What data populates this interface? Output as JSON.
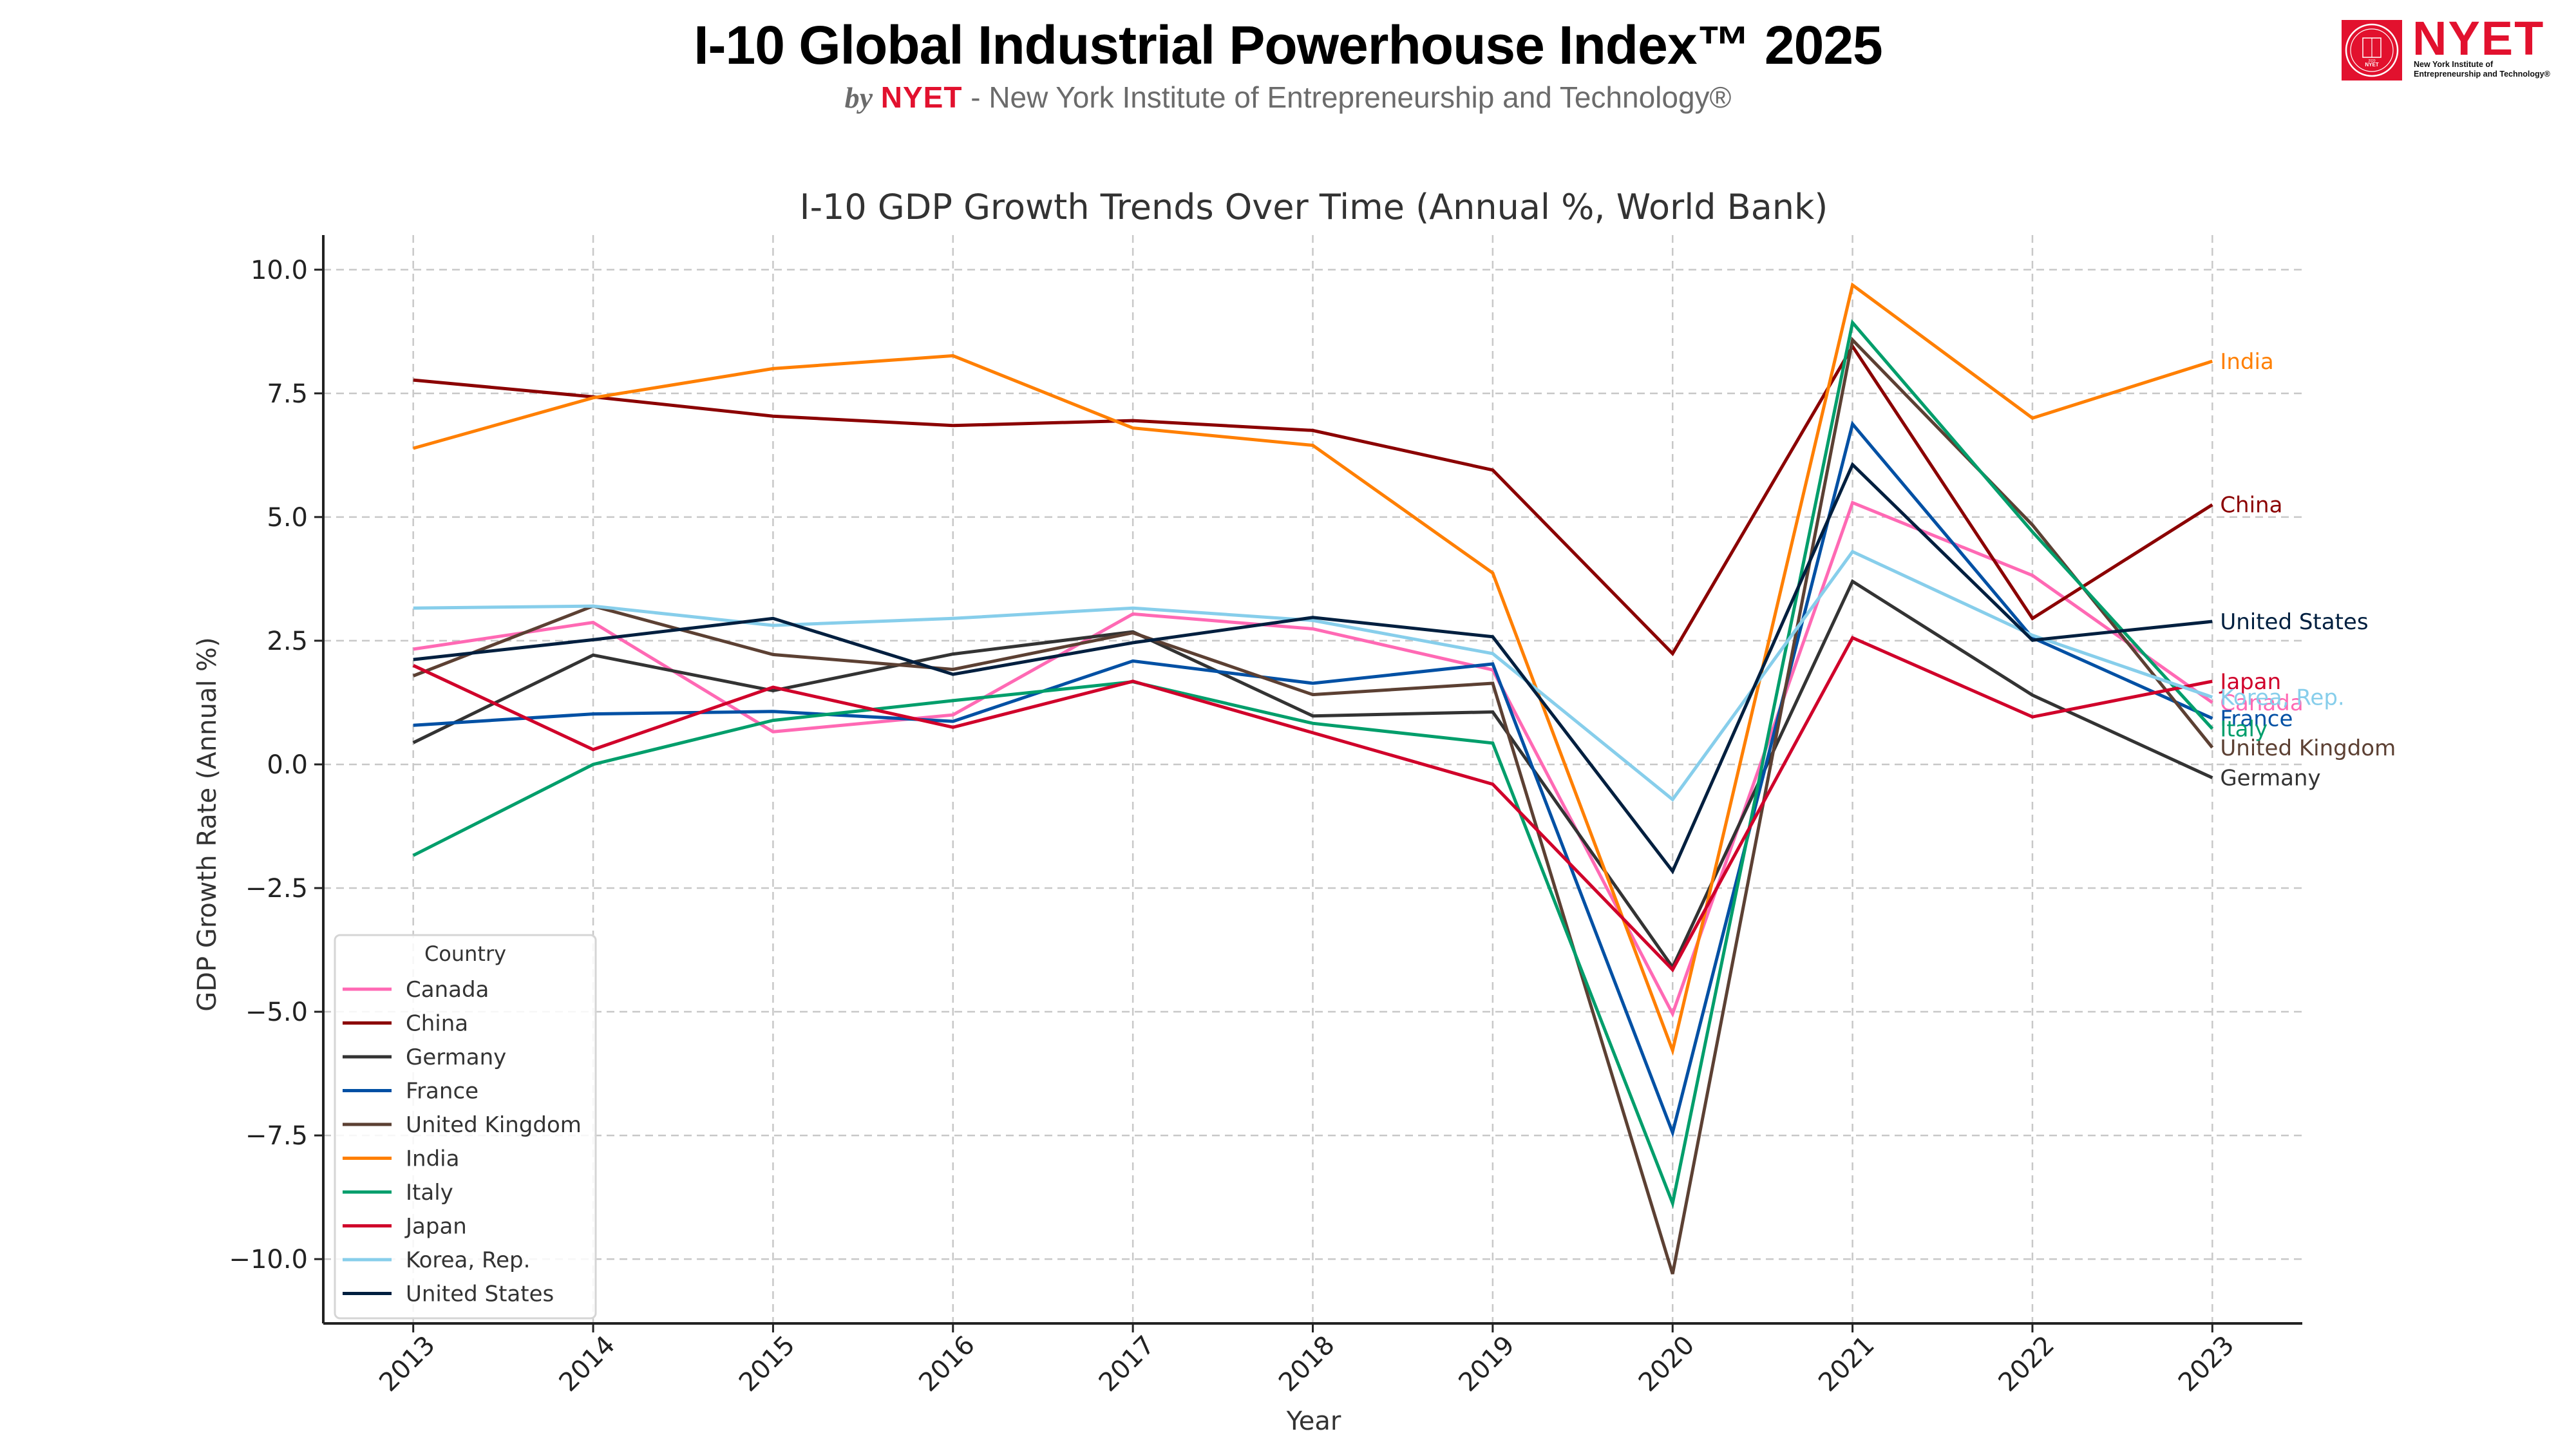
{
  "header": {
    "title": "I-10 Global Industrial Powerhouse Index™ 2025",
    "subtitle_by": "by",
    "subtitle_brand": "NYET",
    "subtitle_rest": " - New York Institute of Entrepreneurship and Technology®"
  },
  "logo": {
    "wordmark": "NYET",
    "tagline_line1": "New York Institute of",
    "tagline_line2": "Entrepreneurship and Technology®",
    "seal_text": "NYET",
    "seal_year": "2020",
    "brand_color": "#e2112e"
  },
  "chart_data": {
    "type": "line",
    "title": "I-10 GDP Growth Trends Over Time (Annual %, World Bank)",
    "xlabel": "Year",
    "ylabel": "GDP Growth Rate (Annual %)",
    "x": [
      2013,
      2014,
      2015,
      2016,
      2017,
      2018,
      2019,
      2020,
      2021,
      2022,
      2023
    ],
    "x_tick_labels": [
      "2013",
      "2014",
      "2015",
      "2016",
      "2017",
      "2018",
      "2019",
      "2020",
      "2021",
      "2022",
      "2023"
    ],
    "ylim": [
      -11.3,
      10.7
    ],
    "y_ticks": [
      10.0,
      7.5,
      5.0,
      2.5,
      0.0,
      -2.5,
      -5.0,
      -7.5,
      -10.0
    ],
    "y_tick_labels": [
      "10.0",
      "7.5",
      "5.0",
      "2.5",
      "0.0",
      "−2.5",
      "−5.0",
      "−7.5",
      "−10.0"
    ],
    "grid": true,
    "legend": {
      "title": "Country",
      "placement": "lower-left"
    },
    "end_labels": true,
    "series": [
      {
        "name": "Canada",
        "color": "#ff69b4",
        "values": [
          2.33,
          2.87,
          0.66,
          1.0,
          3.04,
          2.74,
          1.91,
          -5.04,
          5.29,
          3.82,
          1.25
        ]
      },
      {
        "name": "China",
        "color": "#8b0000",
        "values": [
          7.77,
          7.43,
          7.04,
          6.85,
          6.95,
          6.75,
          5.95,
          2.24,
          8.45,
          2.95,
          5.25
        ]
      },
      {
        "name": "Germany",
        "color": "#333333",
        "values": [
          0.44,
          2.21,
          1.49,
          2.23,
          2.68,
          0.98,
          1.06,
          -4.1,
          3.7,
          1.4,
          -0.27
        ]
      },
      {
        "name": "France",
        "color": "#0050a4",
        "values": [
          0.79,
          1.02,
          1.07,
          0.87,
          2.09,
          1.64,
          2.03,
          -7.44,
          6.88,
          2.56,
          0.93
        ]
      },
      {
        "name": "United Kingdom",
        "color": "#5c4033",
        "values": [
          1.79,
          3.2,
          2.22,
          1.92,
          2.66,
          1.41,
          1.64,
          -10.3,
          8.58,
          4.84,
          0.34
        ]
      },
      {
        "name": "India",
        "color": "#ff7f00",
        "values": [
          6.39,
          7.41,
          8.0,
          8.26,
          6.8,
          6.45,
          3.87,
          -5.78,
          9.69,
          7.0,
          8.15
        ]
      },
      {
        "name": "Italy",
        "color": "#009e6b",
        "values": [
          -1.84,
          0.0,
          0.89,
          1.29,
          1.67,
          0.83,
          0.43,
          -8.87,
          8.93,
          4.7,
          0.72
        ]
      },
      {
        "name": "Japan",
        "color": "#d0002a",
        "values": [
          2.0,
          0.3,
          1.56,
          0.75,
          1.68,
          0.64,
          -0.4,
          -4.15,
          2.56,
          0.96,
          1.68
        ]
      },
      {
        "name": "Korea, Rep.",
        "color": "#87ceeb",
        "values": [
          3.16,
          3.2,
          2.81,
          2.95,
          3.16,
          2.91,
          2.24,
          -0.71,
          4.3,
          2.61,
          1.36
        ]
      },
      {
        "name": "United States",
        "color": "#001f3f",
        "values": [
          2.12,
          2.52,
          2.95,
          1.82,
          2.46,
          2.97,
          2.58,
          -2.16,
          6.06,
          2.51,
          2.89
        ]
      }
    ]
  }
}
